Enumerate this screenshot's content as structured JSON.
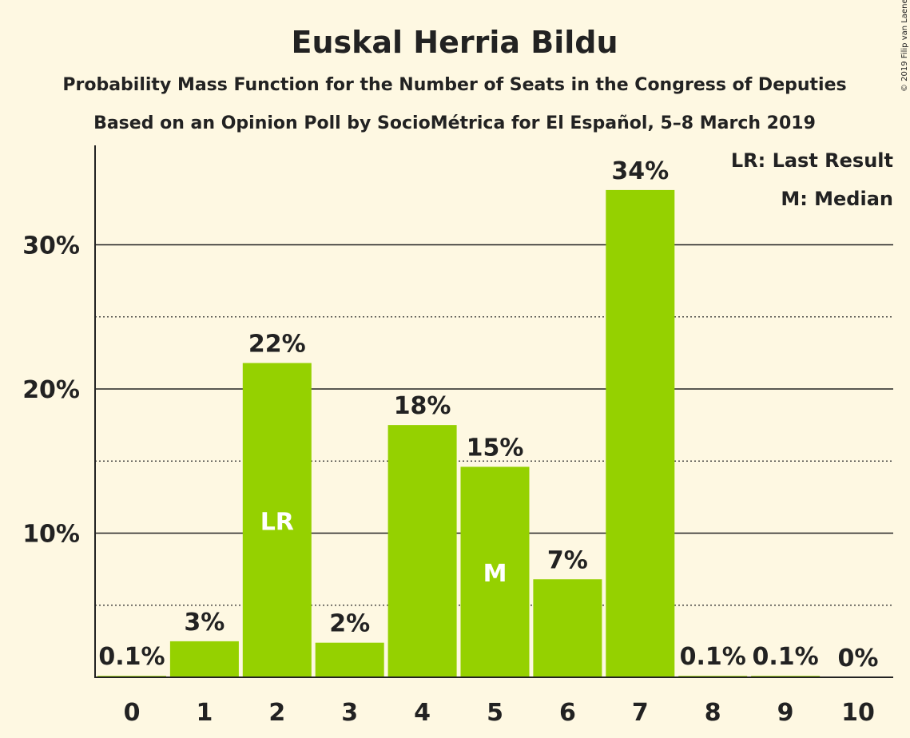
{
  "chart_data": {
    "type": "bar",
    "title": "Euskal Herria Bildu",
    "subtitle": "Probability Mass Function for the Number of Seats in the Congress of Deputies",
    "subtitle2": "Based on an Opinion Poll by SocioMétrica for El Español, 5–8 March 2019",
    "categories": [
      "0",
      "1",
      "2",
      "3",
      "4",
      "5",
      "6",
      "7",
      "8",
      "9",
      "10"
    ],
    "values": [
      0.1,
      2.5,
      21.8,
      2.4,
      17.5,
      14.6,
      6.8,
      33.8,
      0.1,
      0.1,
      0
    ],
    "data_labels": [
      "0.1%",
      "3%",
      "22%",
      "2%",
      "18%",
      "15%",
      "7%",
      "34%",
      "0.1%",
      "0.1%",
      "0%"
    ],
    "in_bar_labels": {
      "2": "LR",
      "5": "M"
    },
    "yticks": [
      10,
      20,
      30
    ],
    "ytick_labels": [
      "10%",
      "20%",
      "30%"
    ],
    "minor_gridlines": [
      5,
      15,
      25
    ],
    "ylim": [
      0,
      37
    ],
    "grid": true,
    "legend": [
      "LR: Last Result",
      "M: Median"
    ],
    "legend_position": "top-right",
    "bar_color": "#95d100",
    "copyright": "© 2019 Filip van Laenen"
  }
}
